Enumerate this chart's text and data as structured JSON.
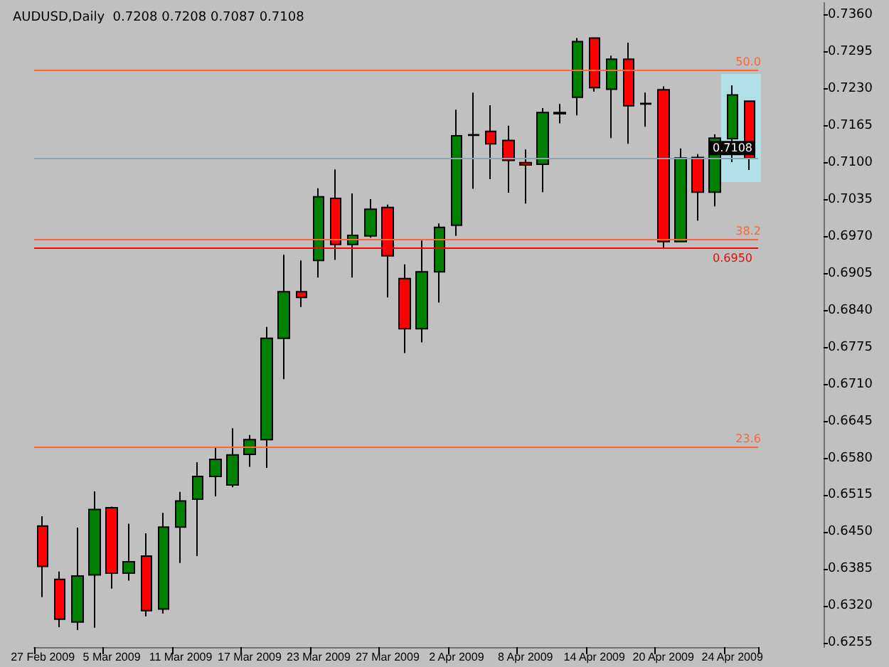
{
  "chart_data": {
    "type": "candlestick",
    "title": "AUDUSD,Daily  0.7208 0.7208 0.7087 0.7108",
    "categories": [
      "27 Feb 2009",
      null,
      null,
      null,
      "5 Mar 2009",
      null,
      null,
      null,
      "11 Mar 2009",
      null,
      null,
      null,
      "17 Mar 2009",
      null,
      null,
      null,
      "23 Mar 2009",
      null,
      null,
      null,
      "27 Mar 2009",
      null,
      null,
      null,
      "2 Apr 2009",
      null,
      null,
      null,
      "8 Apr 2009",
      null,
      null,
      null,
      "14 Apr 2009",
      null,
      null,
      null,
      "20 Apr 2009",
      null,
      null,
      null,
      "24 Apr 2009",
      null
    ],
    "ohlc": [
      [
        0.6461,
        0.6478,
        0.6336,
        0.639
      ],
      [
        0.6367,
        0.6381,
        0.6283,
        0.6297
      ],
      [
        0.6292,
        0.6458,
        0.6278,
        0.6373
      ],
      [
        0.6375,
        0.6522,
        0.6282,
        0.649
      ],
      [
        0.6493,
        0.6495,
        0.6351,
        0.6378
      ],
      [
        0.6378,
        0.6465,
        0.6365,
        0.6398
      ],
      [
        0.6408,
        0.6448,
        0.6302,
        0.6312
      ],
      [
        0.6315,
        0.6484,
        0.6307,
        0.6459
      ],
      [
        0.6459,
        0.6521,
        0.6396,
        0.6505
      ],
      [
        0.6508,
        0.6573,
        0.6408,
        0.6548
      ],
      [
        0.6548,
        0.66,
        0.6513,
        0.6578
      ],
      [
        0.6533,
        0.6633,
        0.6529,
        0.6586
      ],
      [
        0.6587,
        0.6621,
        0.6565,
        0.6613
      ],
      [
        0.6613,
        0.6811,
        0.6563,
        0.6791
      ],
      [
        0.6791,
        0.6938,
        0.6719,
        0.6873
      ],
      [
        0.6873,
        0.6928,
        0.6846,
        0.6863
      ],
      [
        0.6928,
        0.7055,
        0.6898,
        0.704
      ],
      [
        0.7037,
        0.7088,
        0.6929,
        0.6956
      ],
      [
        0.6956,
        0.7046,
        0.6898,
        0.6972
      ],
      [
        0.6971,
        0.7036,
        0.6968,
        0.7018
      ],
      [
        0.7021,
        0.7026,
        0.6863,
        0.6936
      ],
      [
        0.6896,
        0.6921,
        0.6765,
        0.6808
      ],
      [
        0.6808,
        0.6963,
        0.6784,
        0.6908
      ],
      [
        0.6908,
        0.6993,
        0.6854,
        0.6986
      ],
      [
        0.699,
        0.7193,
        0.6971,
        0.7147
      ],
      [
        0.7148,
        0.7223,
        0.7054,
        0.7149
      ],
      [
        0.7155,
        0.7201,
        0.7071,
        0.7133
      ],
      [
        0.7139,
        0.7165,
        0.7047,
        0.7104
      ],
      [
        0.71,
        0.7123,
        0.7028,
        0.7096
      ],
      [
        0.7097,
        0.7196,
        0.7048,
        0.7188
      ],
      [
        0.7186,
        0.7203,
        0.7169,
        0.7188
      ],
      [
        0.7215,
        0.7319,
        0.7183,
        0.7313
      ],
      [
        0.7319,
        0.7319,
        0.7225,
        0.7232
      ],
      [
        0.7229,
        0.7288,
        0.7143,
        0.7282
      ],
      [
        0.7282,
        0.7311,
        0.7133,
        0.72
      ],
      [
        0.7203,
        0.7223,
        0.7163,
        0.7204
      ],
      [
        0.7228,
        0.7234,
        0.695,
        0.6961
      ],
      [
        0.6961,
        0.7125,
        0.696,
        0.7108
      ],
      [
        0.7109,
        0.7115,
        0.6998,
        0.7048
      ],
      [
        0.7048,
        0.715,
        0.7023,
        0.7143
      ],
      [
        0.7142,
        0.7236,
        0.7101,
        0.7219
      ],
      [
        0.7208,
        0.7208,
        0.7087,
        0.7108
      ]
    ],
    "colors": [
      "#ff0000",
      "#ff0000",
      "#008000",
      "#008000",
      "#ff0000",
      "#008000",
      "#ff0000",
      "#008000",
      "#008000",
      "#008000",
      "#008000",
      "#008000",
      "#008000",
      "#008000",
      "#008000",
      "#ff0000",
      "#008000",
      "#ff0000",
      "#008000",
      "#008000",
      "#ff0000",
      "#ff0000",
      "#008000",
      "#008000",
      "#008000",
      "#008000",
      "#ff0000",
      "#ff0000",
      "#ff0000",
      "#008000",
      "#008000",
      "#008000",
      "#ff0000",
      "#008000",
      "#ff0000",
      "#008000",
      "#ff0000",
      "#008000",
      "#ff0000",
      "#008000",
      "#008000",
      "#ff0000"
    ],
    "ylim": [
      0.6248,
      0.7381
    ],
    "yticks": [
      {
        "value": 0.6255,
        "label": "0.6255"
      },
      {
        "value": 0.632,
        "label": "0.6320"
      },
      0.6385,
      {
        "value": 0.645,
        "label": "0.6450"
      },
      0.6515,
      {
        "value": 0.658,
        "label": "0.6580"
      },
      0.6645,
      {
        "value": 0.671,
        "label": "0.6710"
      },
      0.6775,
      {
        "value": 0.684,
        "label": "0.6840"
      },
      0.6905,
      {
        "value": 0.697,
        "label": "0.6970"
      },
      0.7035,
      {
        "value": 0.71,
        "label": "0.7100"
      },
      0.7165,
      {
        "value": 0.723,
        "label": "0.7230"
      },
      0.7295,
      {
        "value": 0.736,
        "label": "0.7360"
      }
    ],
    "annotations": [
      {
        "text": "50.0",
        "y": 0.72625
      },
      {
        "text": "38.2",
        "y": 0.6965
      },
      {
        "text": "23.6",
        "y": 0.66
      }
    ],
    "ref_lines": [
      {
        "axis": "y",
        "value": 0.72625,
        "color": "#ff6633"
      },
      {
        "axis": "y",
        "value": 0.6965,
        "color": "#ff6633"
      },
      {
        "axis": "y",
        "value": 0.66,
        "color": "#ff6633"
      },
      {
        "axis": "y",
        "value": 0.695,
        "label": "0.6950",
        "color": "#ff0000"
      },
      {
        "axis": "y",
        "value": 0.7108,
        "label": "0.7108",
        "color": "#8fa3b3"
      }
    ],
    "grid": false
  }
}
